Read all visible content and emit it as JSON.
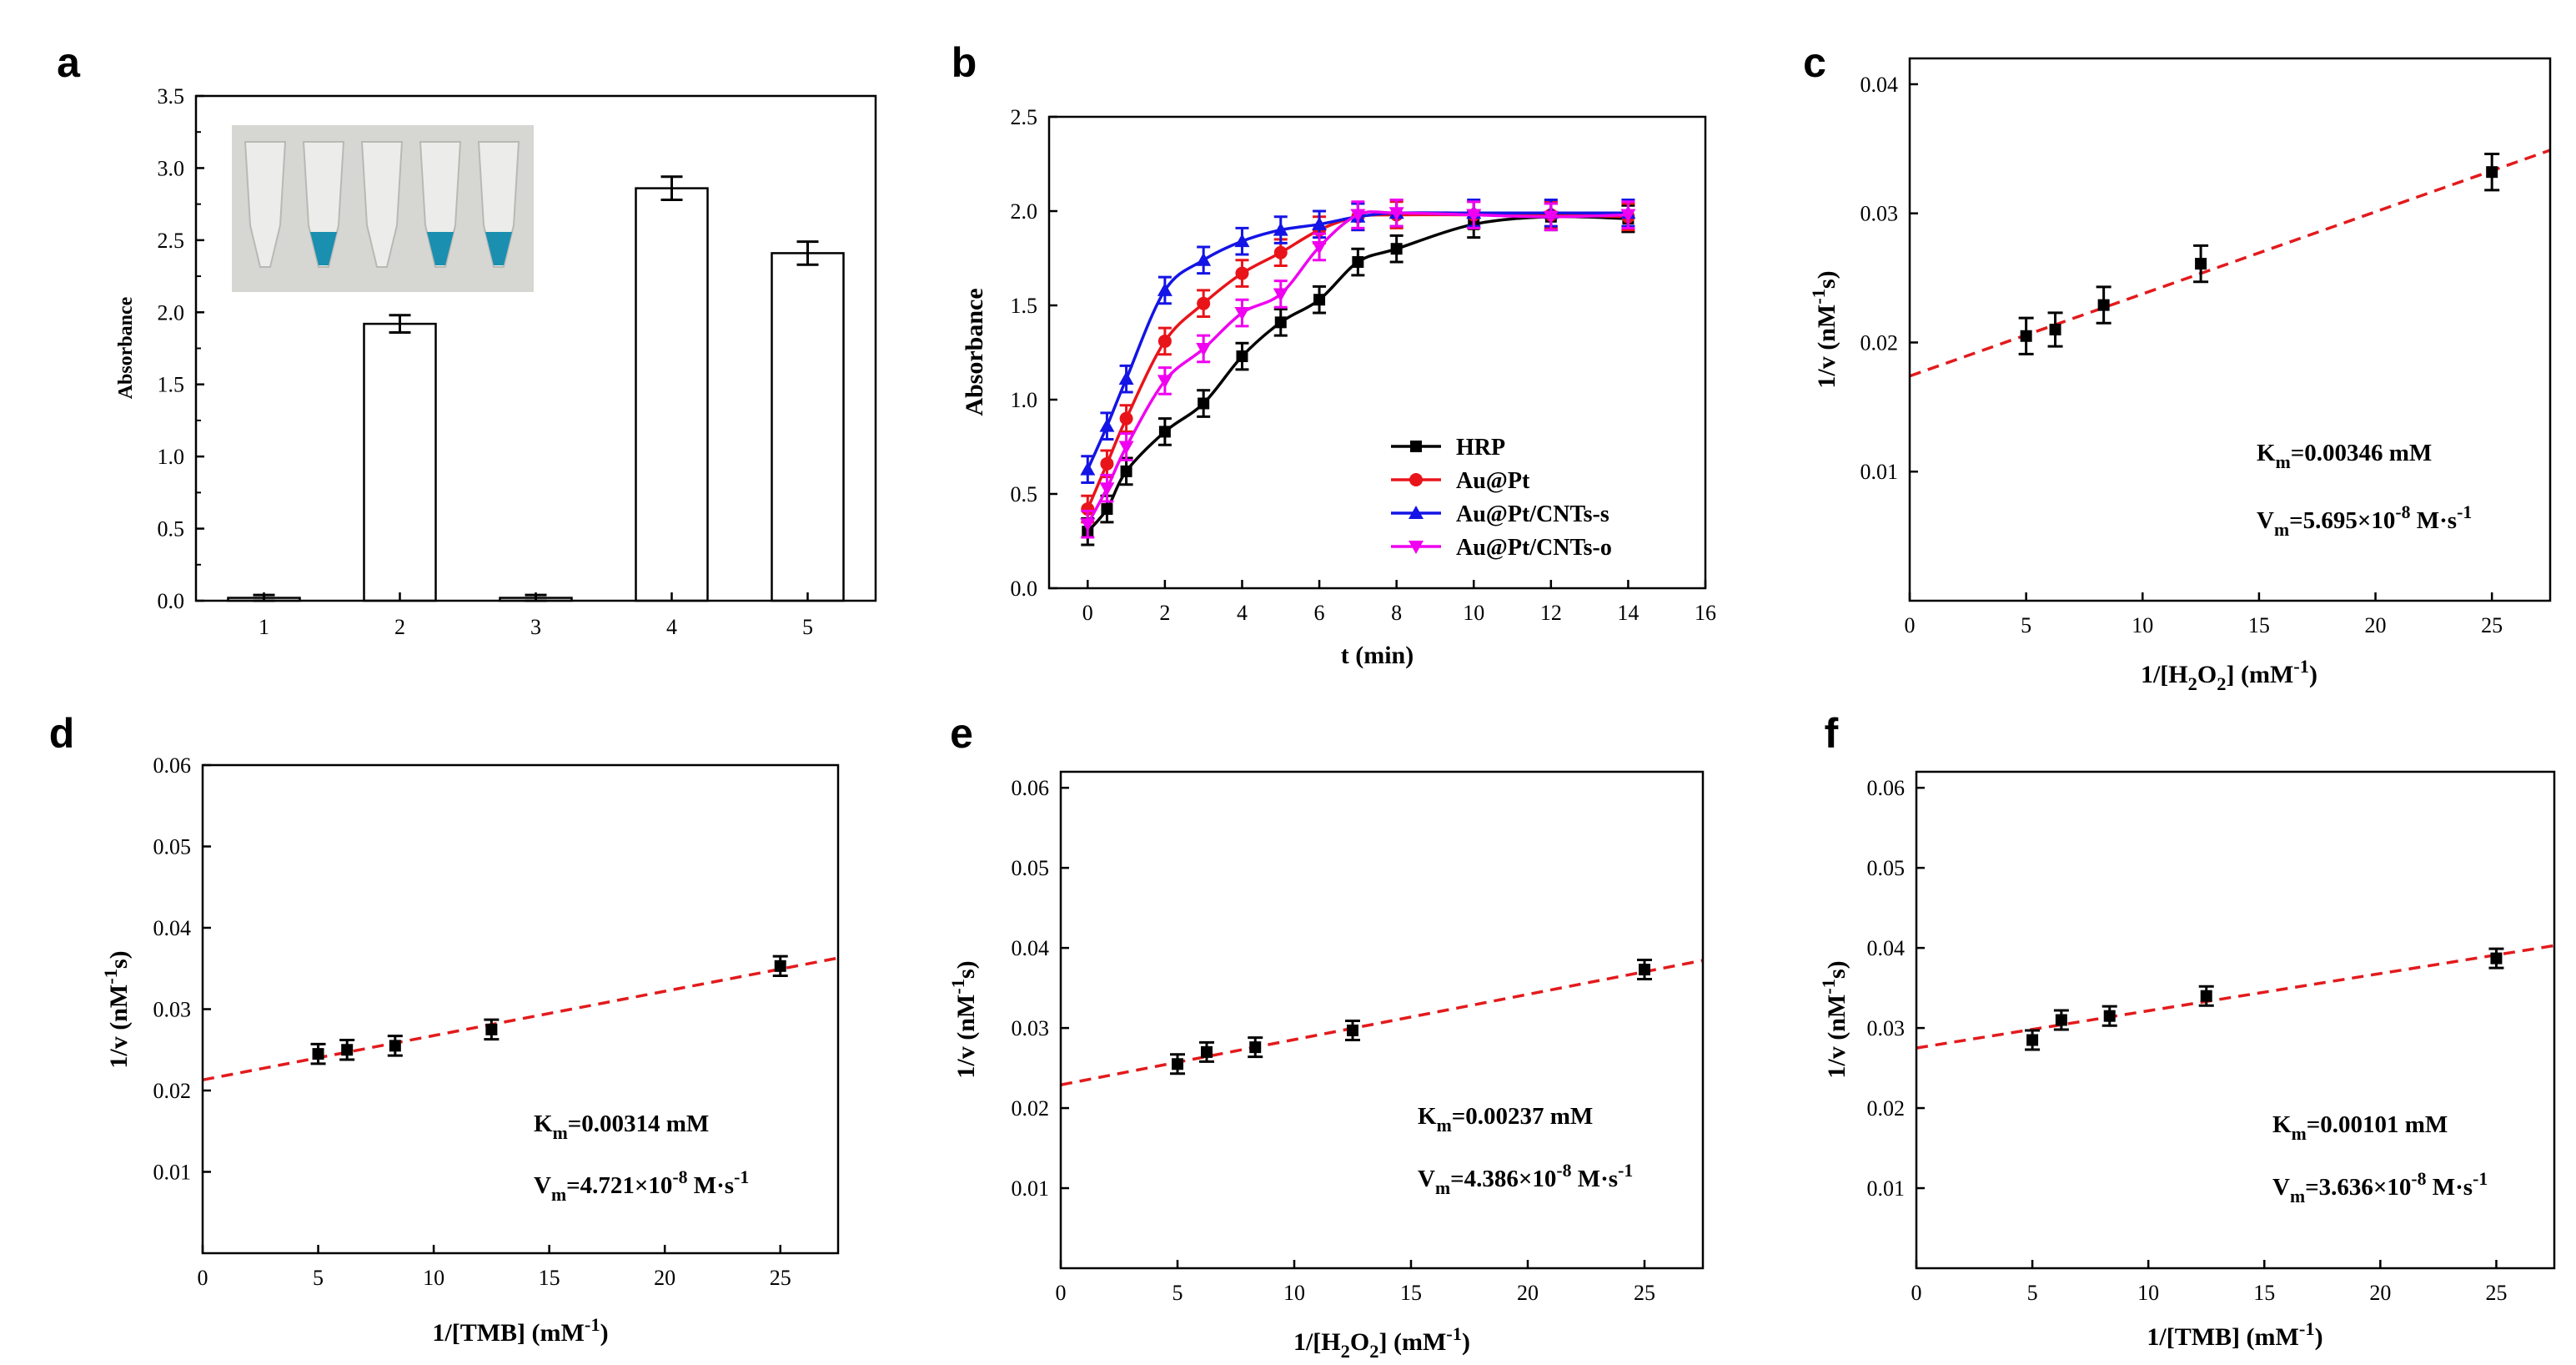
{
  "colors": {
    "HRP": "#000000",
    "AuPt": "#e8141a",
    "AuPtCNTss": "#1414e6",
    "AuPtCNTso": "#f000f0",
    "fit": "#e31a1c",
    "tube_blue": "#1a8fb0",
    "inset_bg": "#d6d6d2"
  },
  "chart_data": [
    {
      "panel": "a",
      "type": "bar",
      "title": "",
      "xlabel": "",
      "ylabel": "Absorbance",
      "categories": [
        "1",
        "2",
        "3",
        "4",
        "5"
      ],
      "values": [
        0.02,
        1.92,
        0.02,
        2.86,
        2.41
      ],
      "errors": [
        0.02,
        0.06,
        0.02,
        0.08,
        0.08
      ],
      "xlim": [
        0.5,
        5.5
      ],
      "ylim": [
        0,
        3.5
      ],
      "yticks": [
        "0.0",
        "0.5",
        "1.0",
        "1.5",
        "2.0",
        "2.5",
        "3.0",
        "3.5"
      ],
      "inset": {
        "description_icon": "tube-photo-icon",
        "tubes": [
          "clear",
          "blue",
          "clear",
          "blue",
          "blue"
        ]
      }
    },
    {
      "panel": "b",
      "type": "line",
      "xlabel": "t (min)",
      "ylabel": "Absorbance",
      "xlim": [
        -1,
        16
      ],
      "ylim": [
        0,
        2.5
      ],
      "xticks": [
        "0",
        "2",
        "4",
        "6",
        "8",
        "10",
        "12",
        "14",
        "16"
      ],
      "yticks": [
        "0.0",
        "0.5",
        "1.0",
        "1.5",
        "2.0",
        "2.5"
      ],
      "legend_position": "bottom-right",
      "series": [
        {
          "name": "HRP",
          "marker": "square",
          "x": [
            0,
            0.5,
            1,
            2,
            3,
            4,
            5,
            6,
            7,
            8,
            10,
            12,
            14
          ],
          "y": [
            0.3,
            0.42,
            0.62,
            0.83,
            0.98,
            1.23,
            1.41,
            1.53,
            1.73,
            1.8,
            1.93,
            1.97,
            1.96
          ]
        },
        {
          "name": "Au@Pt",
          "marker": "circle",
          "x": [
            0,
            0.5,
            1,
            2,
            3,
            4,
            5,
            6,
            7,
            8,
            10,
            12,
            14
          ],
          "y": [
            0.42,
            0.66,
            0.9,
            1.31,
            1.51,
            1.67,
            1.78,
            1.9,
            1.97,
            1.98,
            1.98,
            1.98,
            1.97
          ]
        },
        {
          "name": "Au@Pt/CNTs-s",
          "marker": "triangle-up",
          "x": [
            0,
            0.5,
            1,
            2,
            3,
            4,
            5,
            6,
            7,
            8,
            10,
            12,
            14
          ],
          "y": [
            0.63,
            0.86,
            1.11,
            1.58,
            1.74,
            1.84,
            1.9,
            1.93,
            1.97,
            1.99,
            1.99,
            1.99,
            1.99
          ]
        },
        {
          "name": "Au@Pt/CNTs-o",
          "marker": "triangle-down",
          "x": [
            0,
            0.5,
            1,
            2,
            3,
            4,
            5,
            6,
            7,
            8,
            10,
            12,
            14
          ],
          "y": [
            0.34,
            0.53,
            0.75,
            1.1,
            1.27,
            1.46,
            1.56,
            1.81,
            1.98,
            1.99,
            1.98,
            1.97,
            1.98
          ]
        }
      ]
    },
    {
      "panel": "c",
      "type": "scatter",
      "xlabel_parts": [
        "1/[H",
        "2",
        "O",
        "2",
        "] (mM",
        "-1",
        ")"
      ],
      "ylabel_parts": [
        "1/v (nM",
        "-1",
        "s)"
      ],
      "xlim": [
        0,
        27.5
      ],
      "ylim": [
        0,
        0.042
      ],
      "xticks": [
        0,
        5,
        10,
        15,
        20,
        25
      ],
      "yticks": [
        "0.01",
        "0.02",
        "0.03",
        "0.04"
      ],
      "ytick_values": [
        0.01,
        0.02,
        0.03,
        0.04
      ],
      "x": [
        5,
        6.25,
        8.33,
        12.5,
        25
      ],
      "y": [
        0.0205,
        0.021,
        0.0229,
        0.0261,
        0.0332
      ],
      "errors": [
        0.0014,
        0.0013,
        0.0014,
        0.0014,
        0.0014
      ],
      "fit": {
        "intercept": 0.0174,
        "slope": 0.000636
      },
      "km_parts": [
        "K",
        "m",
        "=0.00346 mM"
      ],
      "vm_parts": [
        "V",
        "m",
        "=5.695×10",
        "-8",
        " M·s",
        "-1"
      ]
    },
    {
      "panel": "d",
      "type": "scatter",
      "xlabel_parts": [
        "1/[TMB] (mM",
        "-1",
        ")"
      ],
      "ylabel_parts": [
        "1/v (nM",
        "-1",
        "s)"
      ],
      "xlim": [
        0,
        27.5
      ],
      "ylim": [
        0,
        0.06
      ],
      "xticks": [
        0,
        5,
        10,
        15,
        20,
        25
      ],
      "yticks": [
        "0.01",
        "0.02",
        "0.03",
        "0.04",
        "0.05",
        "0.06"
      ],
      "ytick_values": [
        0.01,
        0.02,
        0.03,
        0.04,
        0.05,
        0.06
      ],
      "x": [
        5,
        6.25,
        8.33,
        12.5,
        25
      ],
      "y": [
        0.0245,
        0.025,
        0.0255,
        0.0275,
        0.0353
      ],
      "errors": [
        0.0012,
        0.0012,
        0.0012,
        0.0012,
        0.0012
      ],
      "fit": {
        "intercept": 0.0213,
        "slope": 0.000545
      },
      "km_parts": [
        "K",
        "m",
        "=0.00314 mM"
      ],
      "vm_parts": [
        "V",
        "m",
        "=4.721×10",
        "-8",
        " M·s",
        "-1"
      ]
    },
    {
      "panel": "e",
      "type": "scatter",
      "xlabel_parts": [
        "1/[H",
        "2",
        "O",
        "2",
        "] (mM",
        "-1",
        ")"
      ],
      "ylabel_parts": [
        "1/v (nM",
        "-1",
        "s)"
      ],
      "xlim": [
        0,
        27.5
      ],
      "ylim": [
        0,
        0.062
      ],
      "xticks": [
        0,
        5,
        10,
        15,
        20,
        25
      ],
      "yticks": [
        "0.01",
        "0.02",
        "0.03",
        "0.04",
        "0.05",
        "0.06"
      ],
      "ytick_values": [
        0.01,
        0.02,
        0.03,
        0.04,
        0.05,
        0.06
      ],
      "x": [
        5,
        6.25,
        8.33,
        12.5,
        25
      ],
      "y": [
        0.0255,
        0.027,
        0.0276,
        0.0297,
        0.0373
      ],
      "errors": [
        0.0012,
        0.0012,
        0.0012,
        0.0012,
        0.0012
      ],
      "fit": {
        "intercept": 0.0229,
        "slope": 0.000565
      },
      "km_parts": [
        "K",
        "m",
        "=0.00237 mM"
      ],
      "vm_parts": [
        "V",
        "m",
        "=4.386×10",
        "-8",
        " M·s",
        "-1"
      ]
    },
    {
      "panel": "f",
      "type": "scatter",
      "xlabel_parts": [
        "1/[TMB] (mM",
        "-1",
        ")"
      ],
      "ylabel_parts": [
        "1/v (nM",
        "-1",
        "s)"
      ],
      "xlim": [
        0,
        27.5
      ],
      "ylim": [
        0,
        0.062
      ],
      "xticks": [
        0,
        5,
        10,
        15,
        20,
        25
      ],
      "yticks": [
        "0.01",
        "0.02",
        "0.03",
        "0.04",
        "0.05",
        "0.06"
      ],
      "ytick_values": [
        0.01,
        0.02,
        0.03,
        0.04,
        0.05,
        0.06
      ],
      "x": [
        5,
        6.25,
        8.33,
        12.5,
        25
      ],
      "y": [
        0.0285,
        0.031,
        0.0315,
        0.034,
        0.0387
      ],
      "errors": [
        0.0012,
        0.0012,
        0.0012,
        0.0012,
        0.0012
      ],
      "fit": {
        "intercept": 0.0275,
        "slope": 0.000465
      },
      "km_parts": [
        "K",
        "m",
        "=0.00101 mM"
      ],
      "vm_parts": [
        "V",
        "m",
        "=3.636×10",
        "-8",
        " M·s",
        "-1"
      ]
    }
  ]
}
